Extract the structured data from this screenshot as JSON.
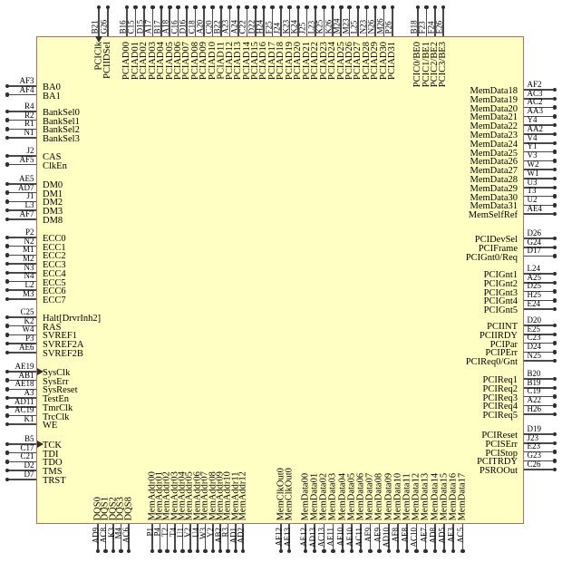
{
  "colors": {
    "chip_fill": "#ffffc4",
    "chip_border": "#a87060",
    "lead": "#4a4a4a",
    "dot": "#2e2e2e",
    "text": "#000000"
  },
  "pins": {
    "top": [
      [
        {
          "num": "B21",
          "name": "PCIClk",
          "clock": true
        },
        {
          "num": "G26",
          "name": "PCIIDSel"
        }
      ],
      [
        {
          "num": "B16",
          "name": "PCIAD00"
        },
        {
          "num": "C15",
          "name": "PCIAD01"
        },
        {
          "num": "D15",
          "name": "PCIAD02"
        },
        {
          "num": "A17",
          "name": "PCIAD03"
        },
        {
          "num": "B17",
          "name": "PCIAD04"
        },
        {
          "num": "A18",
          "name": "PCIAD05"
        },
        {
          "num": "C16",
          "name": "PCIAD06"
        },
        {
          "num": "D16",
          "name": "PCIAD07"
        },
        {
          "num": "C18",
          "name": "PCIAD08"
        },
        {
          "num": "A20",
          "name": "PCIAD09"
        },
        {
          "num": "C20",
          "name": "PCIAD10"
        },
        {
          "num": "B22",
          "name": "PCIAD11"
        },
        {
          "num": "A23",
          "name": "PCIAD12"
        },
        {
          "num": "A24",
          "name": "PCIAD13"
        },
        {
          "num": "C22",
          "name": "PCIAD14"
        },
        {
          "num": "D22",
          "name": "PCIAD15"
        },
        {
          "num": "H24",
          "name": "PCIAD16"
        },
        {
          "num": "F25",
          "name": "PCIAD17"
        },
        {
          "num": "J24",
          "name": "PCIAD18"
        },
        {
          "num": "K23",
          "name": "PCIAD19"
        },
        {
          "num": "K24",
          "name": "PCIAD20"
        },
        {
          "num": "J25",
          "name": "PCIAD21"
        },
        {
          "num": "L23",
          "name": "PCIAD22"
        },
        {
          "num": "K25",
          "name": "PCIAD23"
        },
        {
          "num": "K26",
          "name": "PCIAD24"
        },
        {
          "num": "M24",
          "name": "PCIAD25"
        },
        {
          "num": "M23",
          "name": "PCIAD26"
        },
        {
          "num": "L25",
          "name": "PCIAD27"
        },
        {
          "num": "N23",
          "name": "PCIAD28"
        },
        {
          "num": "N26",
          "name": "PCIAD29"
        },
        {
          "num": "M26",
          "name": "PCIAD30"
        },
        {
          "num": "P26",
          "name": "PCIAD31"
        }
      ],
      [
        {
          "num": "B18",
          "name": "PCIC0/BE0"
        },
        {
          "num": "F23",
          "name": "PCIC1/BE1"
        },
        {
          "num": "F24",
          "name": "PCIC2/BE2"
        },
        {
          "num": "E26",
          "name": "PCIC3/BE3"
        }
      ]
    ],
    "left": [
      [
        {
          "num": "AF3",
          "name": "BA0"
        },
        {
          "num": "AF4",
          "name": "BA1"
        }
      ],
      [
        {
          "num": "R4",
          "name": "BankSel0"
        },
        {
          "num": "R2",
          "name": "BankSel1"
        },
        {
          "num": "R1",
          "name": "BankSel2"
        },
        {
          "num": "N1",
          "name": "BankSel3"
        }
      ],
      [
        {
          "num": "J2",
          "name": "CAS"
        },
        {
          "num": "AF5",
          "name": "ClkEn"
        }
      ],
      [
        {
          "num": "AE5",
          "name": "DM0"
        },
        {
          "num": "AD7",
          "name": "DM1"
        },
        {
          "num": "J1",
          "name": "DM2"
        },
        {
          "num": "L3",
          "name": "DM3"
        },
        {
          "num": "AF7",
          "name": "DM8"
        }
      ],
      [
        {
          "num": "P2",
          "name": "ECC0"
        },
        {
          "num": "N2",
          "name": "ECC1"
        },
        {
          "num": "M1",
          "name": "ECC2"
        },
        {
          "num": "M2",
          "name": "ECC3"
        },
        {
          "num": "N3",
          "name": "ECC4"
        },
        {
          "num": "N4",
          "name": "ECC5"
        },
        {
          "num": "L2",
          "name": "ECC6"
        },
        {
          "num": "M3",
          "name": "ECC7"
        }
      ],
      [
        {
          "num": "C25",
          "name": "Halt[DrvrInh2]"
        },
        {
          "num": "K2",
          "name": "RAS"
        },
        {
          "num": "W4",
          "name": "SVREF1"
        },
        {
          "num": "P3",
          "name": "SVREF2A"
        },
        {
          "num": "AE6",
          "name": "SVREF2B"
        }
      ],
      [
        {
          "num": "AE19",
          "name": "SysClk",
          "clock": true
        },
        {
          "num": "AB1",
          "name": "SysErr"
        },
        {
          "num": "AE18",
          "name": "SysReset"
        },
        {
          "num": "A3",
          "name": "TestEn"
        },
        {
          "num": "AD11",
          "name": "TmrClk"
        },
        {
          "num": "AC19",
          "name": "TrcClk"
        },
        {
          "num": "K1",
          "name": "WE"
        }
      ],
      [
        {
          "num": "B5",
          "name": "TCK",
          "clock": true
        },
        {
          "num": "C17",
          "name": "TDI"
        },
        {
          "num": "C21",
          "name": "TDO"
        },
        {
          "num": "D2",
          "name": "TMS"
        },
        {
          "num": "D7",
          "name": "TRST"
        }
      ]
    ],
    "right": [
      [
        {
          "num": "AF2",
          "name": "MemData18"
        },
        {
          "num": "AC3",
          "name": "MemData19"
        },
        {
          "num": "AC2",
          "name": "MemData20"
        },
        {
          "num": "AA3",
          "name": "MemData21"
        },
        {
          "num": "Y4",
          "name": "MemData22"
        },
        {
          "num": "AA2",
          "name": "MemData23"
        },
        {
          "num": "V4",
          "name": "MemData24"
        },
        {
          "num": "Y1",
          "name": "MemData25"
        },
        {
          "num": "V3",
          "name": "MemData26"
        },
        {
          "num": "W2",
          "name": "MemData27"
        },
        {
          "num": "W1",
          "name": "MemData28"
        },
        {
          "num": "U3",
          "name": "MemData29"
        },
        {
          "num": "T3",
          "name": "MemData30"
        },
        {
          "num": "U2",
          "name": "MemData31"
        },
        {
          "num": "AE4",
          "name": "MemSelfRef"
        }
      ],
      [
        {
          "num": "D26",
          "name": "PCIDevSel"
        },
        {
          "num": "G24",
          "name": "PCIFrame"
        },
        {
          "num": "D17",
          "name": "PCIGnt0/Req"
        }
      ],
      [
        {
          "num": "L24",
          "name": "PCIGnt1"
        },
        {
          "num": "A25",
          "name": "PCIGnt2"
        },
        {
          "num": "D25",
          "name": "PCIGnt3"
        },
        {
          "num": "H25",
          "name": "PCIGnt4"
        },
        {
          "num": "E24",
          "name": "PCIGnt5"
        }
      ],
      [
        {
          "num": "D20",
          "name": "PCIINT"
        },
        {
          "num": "E25",
          "name": "PCIIRDY"
        },
        {
          "num": "C23",
          "name": "PCIPar"
        },
        {
          "num": "D24",
          "name": "PCIPErr"
        },
        {
          "num": "N25",
          "name": "PCIReq0/Gnt"
        }
      ],
      [
        {
          "num": "B20",
          "name": "PCIReq1"
        },
        {
          "num": "B19",
          "name": "PCIReq2"
        },
        {
          "num": "C19",
          "name": "PCIReq3"
        },
        {
          "num": "A22",
          "name": "PCIReq4"
        },
        {
          "num": "H26",
          "name": "PCIReq5"
        }
      ],
      [
        {
          "num": "D19",
          "name": "PCIReset"
        },
        {
          "num": "J23",
          "name": "PCISErr"
        },
        {
          "num": "E23",
          "name": "PCIStop"
        },
        {
          "num": "G23",
          "name": "PCITRDY"
        },
        {
          "num": "C26",
          "name": "PSROOut"
        }
      ]
    ],
    "bottom": [
      [
        {
          "num": "AD9",
          "name": "DQS0"
        },
        {
          "num": "AC8",
          "name": "DQS1"
        },
        {
          "num": "K3",
          "name": "DQS2"
        },
        {
          "num": "M4",
          "name": "DQS3"
        },
        {
          "num": "AC6",
          "name": "DQS8"
        }
      ],
      [
        {
          "num": "P1",
          "name": "MemAddr00"
        },
        {
          "num": "P4",
          "name": "MemAddr01"
        },
        {
          "num": "T2",
          "name": "MemAddr02"
        },
        {
          "num": "T4",
          "name": "MemAddr03"
        },
        {
          "num": "U1",
          "name": "MemAddr04"
        },
        {
          "num": "V2",
          "name": "MemAddr05"
        },
        {
          "num": "U4",
          "name": "MemAddr06"
        },
        {
          "num": "W3",
          "name": "MemAddr07"
        },
        {
          "num": "Y2",
          "name": "MemAddr08"
        },
        {
          "num": "AB2",
          "name": "MemAddr09"
        },
        {
          "num": "R3",
          "name": "MemAddr10"
        },
        {
          "num": "AD1",
          "name": "MemAddr11"
        },
        {
          "num": "AD2",
          "name": "MemAddr12"
        }
      ],
      [
        {
          "num": "AF12",
          "name": "MemClkOut0"
        },
        {
          "num": "AE13",
          "name": "MemClkOut0"
        }
      ],
      [
        {
          "num": "AE12",
          "name": "MemData00"
        },
        {
          "num": "AD13",
          "name": "MemData01"
        },
        {
          "num": "AC13",
          "name": "MemData02"
        },
        {
          "num": "AE11",
          "name": "MemData03"
        },
        {
          "num": "AF10",
          "name": "MemData04"
        },
        {
          "num": "AE10",
          "name": "MemData05"
        },
        {
          "num": "AC11",
          "name": "MemData06"
        },
        {
          "num": "AF9",
          "name": "MemData07"
        },
        {
          "num": "AE9",
          "name": "MemData08"
        },
        {
          "num": "AD10",
          "name": "MemData09"
        },
        {
          "num": "AF8",
          "name": "MemData10"
        },
        {
          "num": "AE8",
          "name": "MemData11"
        },
        {
          "num": "AC10",
          "name": "MemData12"
        },
        {
          "num": "AE7",
          "name": "MemData13"
        },
        {
          "num": "AD8",
          "name": "MemData14"
        },
        {
          "num": "AD5",
          "name": "MemData15"
        },
        {
          "num": "AE3",
          "name": "MemData16"
        },
        {
          "num": "AC5",
          "name": "MemData17"
        }
      ]
    ]
  }
}
